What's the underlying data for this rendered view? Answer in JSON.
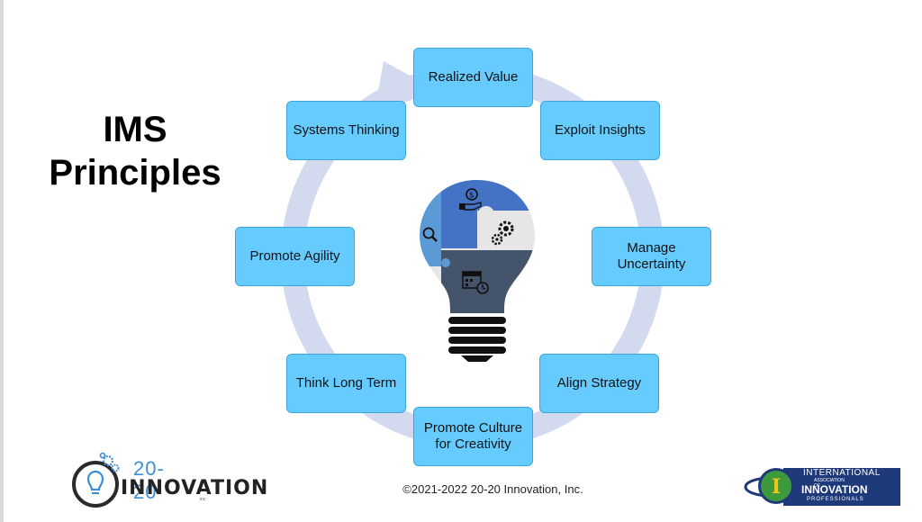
{
  "title": {
    "line1": "IMS",
    "line2": "Principles"
  },
  "principles": [
    "Realized Value",
    "Exploit Insights",
    "Manage Uncertainty",
    "Align Strategy",
    "Promote Culture for Creativity",
    "Think Long Term",
    "Promote Agility",
    "Systems Thinking"
  ],
  "footer": {
    "copyright": "©2021-2022 20-20 Innovation, Inc."
  },
  "logo_left": {
    "line1": "20-20",
    "line2": "INNOVATION",
    "line3": "inc"
  },
  "logo_right": {
    "line1": "INTERNATIONAL",
    "line2": "ASSOCIATION OF",
    "line3": "INNOVATION",
    "line4": "PROFESSIONALS",
    "emblem_letter": "I"
  },
  "colors": {
    "node_fill": "#66ccff",
    "node_border": "#3aa6dd",
    "ring": "#d3d9ef",
    "bulb_blue": "#4472c4",
    "bulb_light_blue": "#5b9bd5",
    "bulb_gray": "#e7e6e6",
    "bulb_slate": "#44546a"
  },
  "icons": [
    "money-hand-icon",
    "gears-icon",
    "magnifier-icon",
    "calendar-clock-icon"
  ]
}
